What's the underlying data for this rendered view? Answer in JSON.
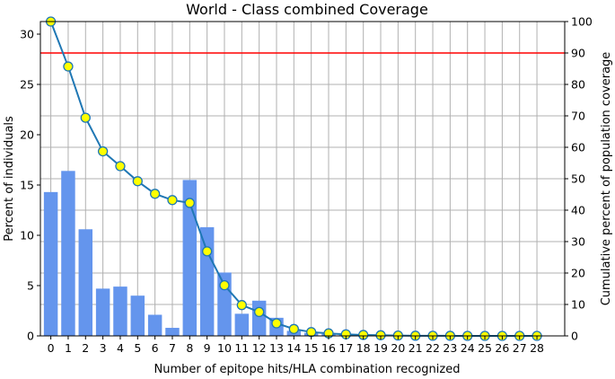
{
  "chart_data": {
    "type": "bar",
    "title": "World - Class combined Coverage",
    "xlabel": "Number of epitope hits/HLA combination recognized",
    "ylabel": "Percent of individuals",
    "y2label": "Cumulative percent of population coverage",
    "categories": [
      "0",
      "1",
      "2",
      "3",
      "4",
      "5",
      "6",
      "7",
      "8",
      "9",
      "10",
      "11",
      "12",
      "13",
      "14",
      "15",
      "16",
      "17",
      "18",
      "19",
      "20",
      "21",
      "22",
      "23",
      "24",
      "25",
      "26",
      "27",
      "28"
    ],
    "series": [
      {
        "type": "bar",
        "axis": "left",
        "values": [
          14.3,
          16.4,
          10.6,
          4.7,
          4.9,
          4.0,
          2.1,
          0.8,
          15.5,
          10.8,
          6.3,
          2.2,
          3.5,
          1.8,
          0.5,
          0.3,
          0.2,
          0.1,
          0.1,
          0.05,
          0.03,
          0.02,
          0.01,
          0,
          0,
          0,
          0,
          0,
          0
        ]
      },
      {
        "type": "line",
        "axis": "right",
        "values": [
          100,
          85.7,
          69.4,
          58.7,
          54.0,
          49.2,
          45.2,
          43.2,
          42.3,
          26.9,
          16.1,
          9.8,
          7.6,
          4.0,
          2.2,
          1.2,
          0.8,
          0.5,
          0.3,
          0.2,
          0.1,
          0.05,
          0.03,
          0.02,
          0.01,
          0,
          0,
          0,
          0
        ]
      }
    ],
    "reference_line": {
      "axis": "right",
      "value": 90
    },
    "ylim": [
      0,
      31.25
    ],
    "y2lim": [
      0,
      100
    ],
    "yticks": [
      0,
      5,
      10,
      15,
      20,
      25,
      30
    ],
    "y2ticks": [
      0,
      10,
      20,
      30,
      40,
      50,
      60,
      70,
      80,
      90,
      100
    ],
    "grid": true,
    "colors": {
      "bar": "#6495ED",
      "line": "#1F77B4",
      "marker_fill": "#FFFF00",
      "reference": "#FF0000",
      "grid": "#B0B0B0"
    }
  }
}
